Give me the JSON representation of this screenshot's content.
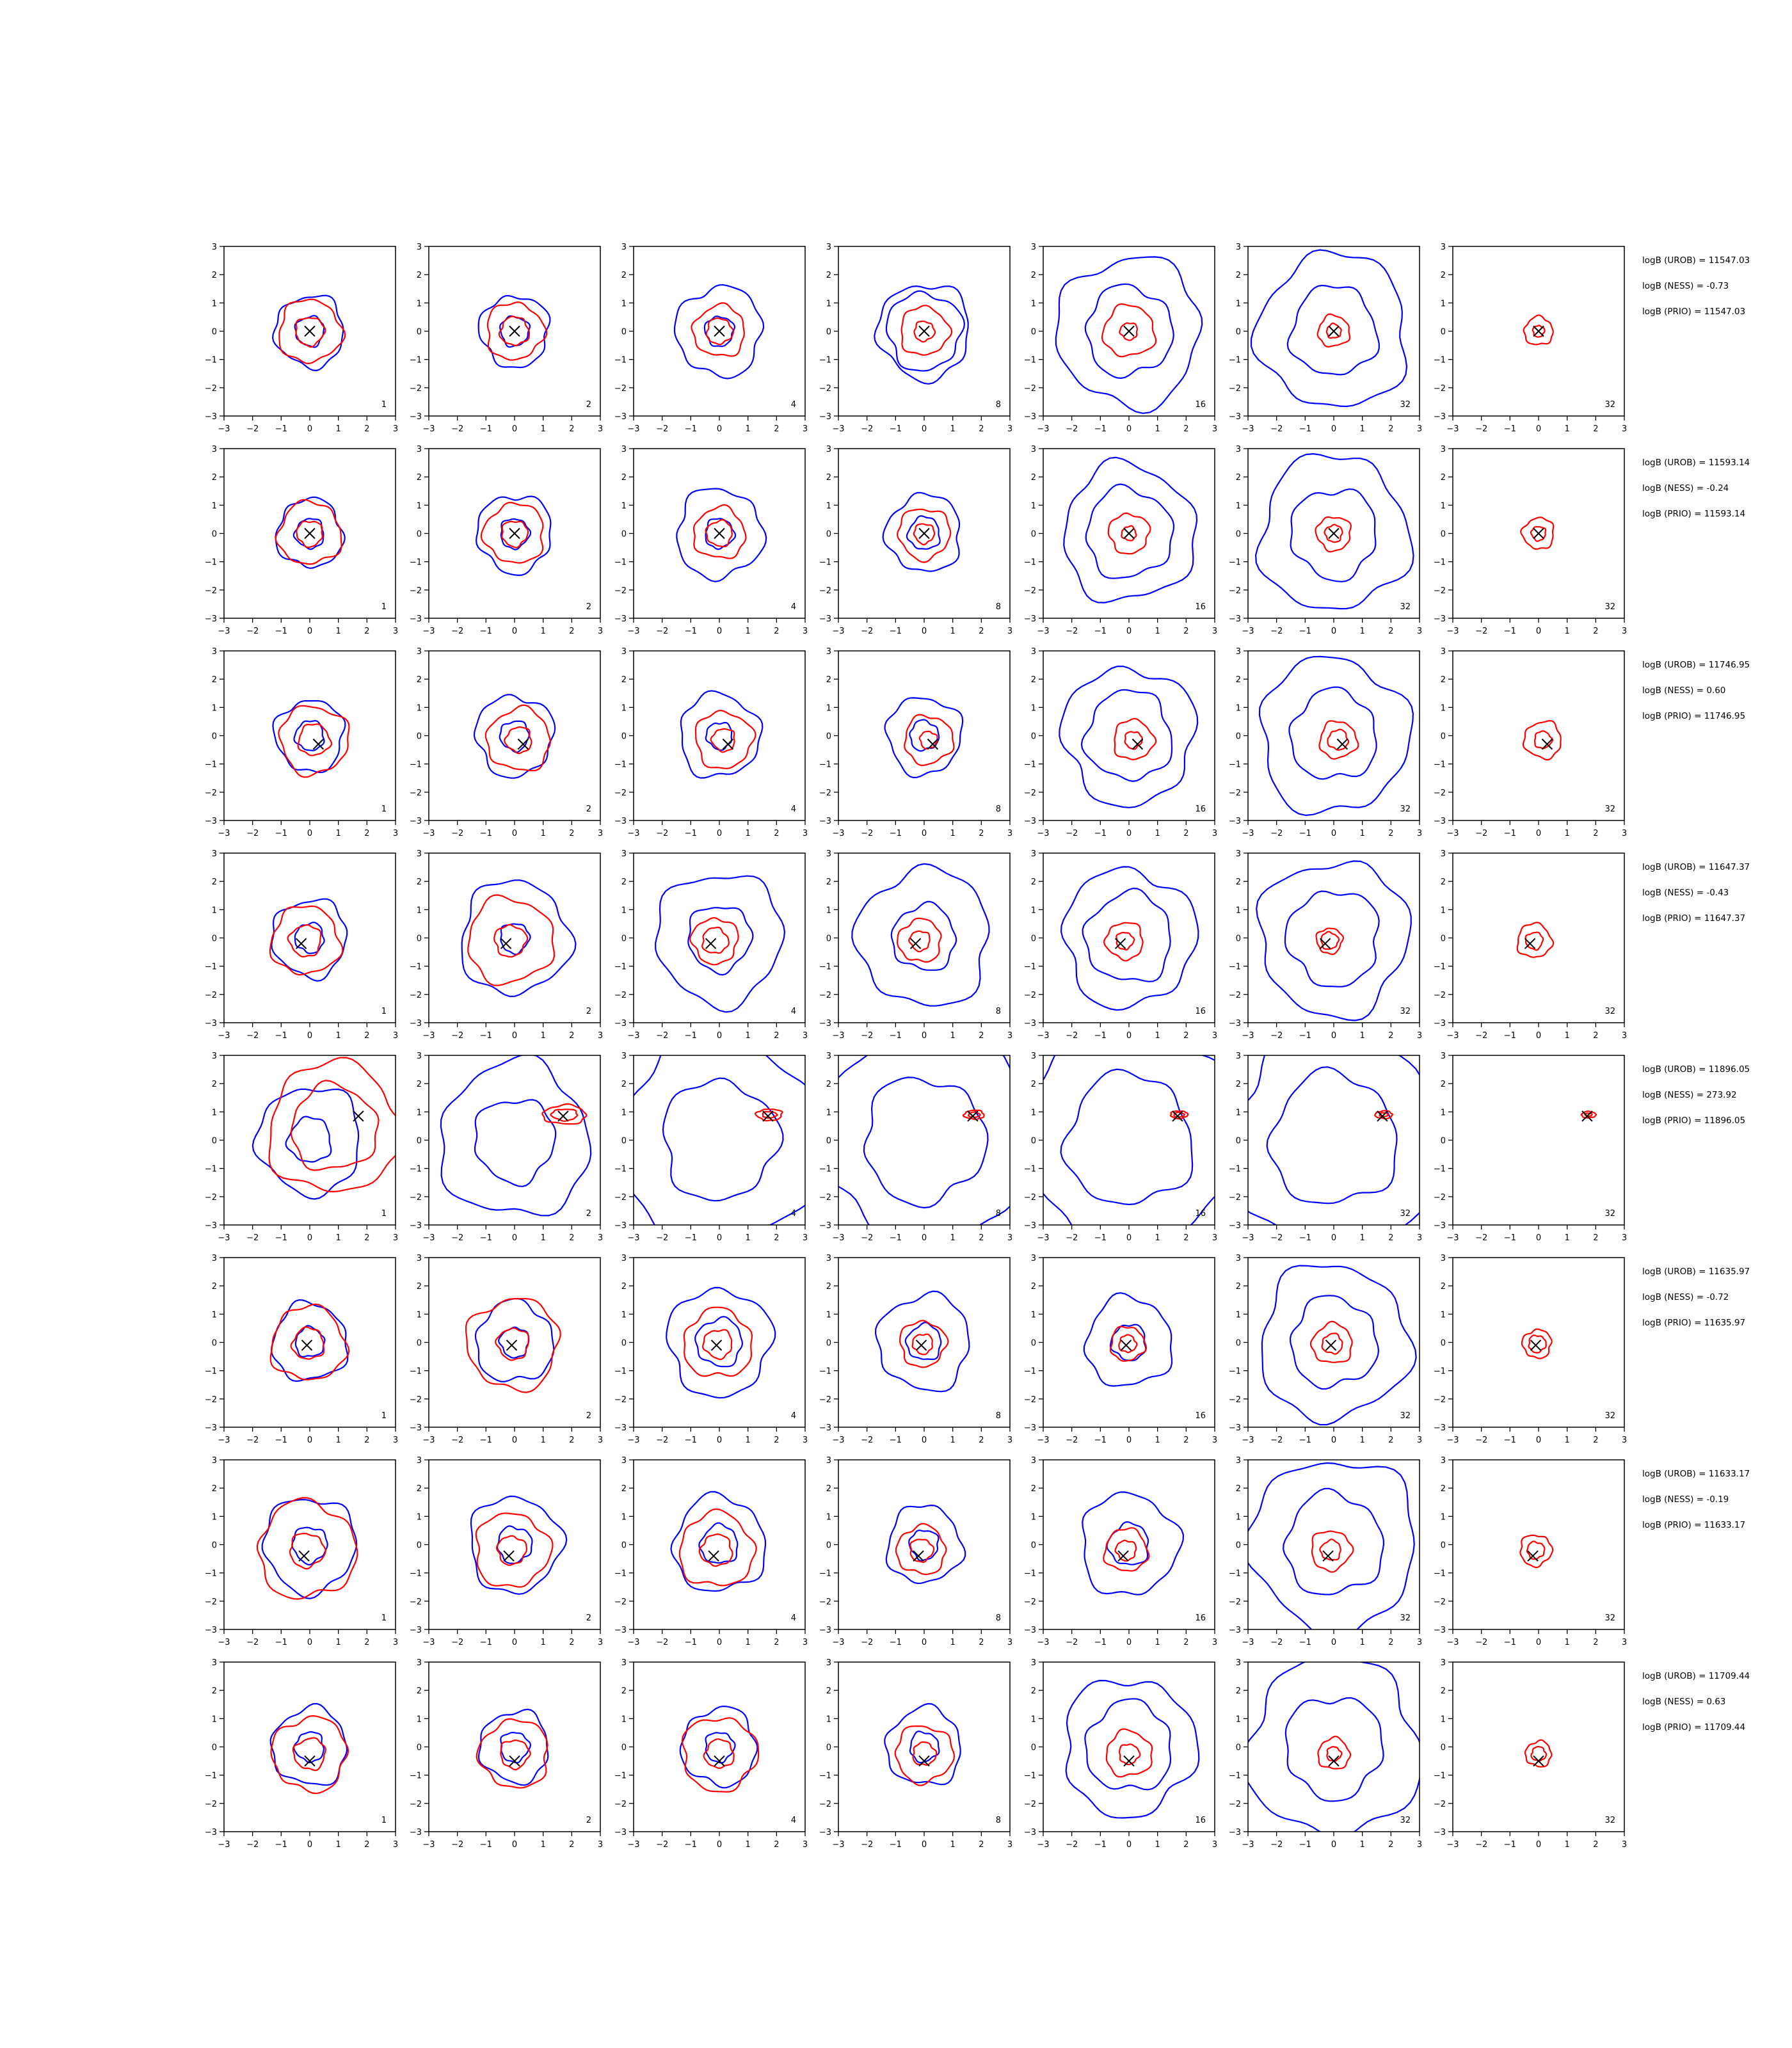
{
  "figure": {
    "colors": {
      "broad": "#0000ff",
      "narrow": "#ff0000",
      "marker": "#000000",
      "axes": "#000000"
    },
    "ticks": [
      "−3",
      "−2",
      "−1",
      "0",
      "1",
      "2",
      "3"
    ],
    "panel_labels": [
      "1",
      "2",
      "4",
      "8",
      "16",
      "32",
      "32"
    ]
  },
  "chart_data": {
    "type": "contour-grid",
    "rows": 8,
    "columns": 7,
    "xlim": [
      -3,
      3
    ],
    "ylim": [
      -3,
      3
    ],
    "grid": false,
    "annotation_placement": "right",
    "series": [
      {
        "name": "blue",
        "color": "#0000ff"
      },
      {
        "name": "red",
        "color": "#ff0000"
      }
    ],
    "panels": [
      {
        "marker": [
          0.0,
          0.0
        ],
        "annotations": [
          "logB (UROB) = 11547.03",
          "logB (NESS) = -0.73",
          "logB (PRIO) = 11547.03"
        ],
        "blue_radii": [
          [
            1.2,
            0.5
          ],
          [
            1.2,
            0.5
          ],
          [
            1.5,
            0.5
          ],
          [
            1.6,
            1.3
          ],
          [
            2.5,
            1.5
          ],
          [
            2.6,
            1.5
          ],
          null
        ],
        "red_radii": [
          [
            1.1,
            0.5
          ],
          [
            1.0,
            0.5
          ],
          [
            0.9,
            0.45
          ],
          [
            0.85,
            0.35
          ],
          [
            0.9,
            0.3
          ],
          [
            0.55,
            0.25
          ],
          [
            0.5,
            0.2
          ]
        ]
      },
      {
        "marker": [
          0.0,
          0.0
        ],
        "annotations": [
          "logB (UROB) = 11593.14",
          "logB (NESS) = -0.24",
          "logB (PRIO) = 11593.14"
        ],
        "blue_radii": [
          [
            1.15,
            0.5
          ],
          [
            1.3,
            0.5
          ],
          [
            1.5,
            0.5
          ],
          [
            1.3,
            0.55
          ],
          [
            2.3,
            1.5
          ],
          [
            2.6,
            1.5
          ],
          null
        ],
        "red_radii": [
          [
            1.1,
            0.45
          ],
          [
            1.05,
            0.45
          ],
          [
            0.9,
            0.45
          ],
          [
            0.9,
            0.35
          ],
          [
            0.7,
            0.25
          ],
          [
            0.6,
            0.3
          ],
          [
            0.55,
            0.25
          ]
        ]
      },
      {
        "marker": [
          0.3,
          -0.3
        ],
        "annotations": [
          "logB (UROB) = 11746.95",
          "logB (NESS) = 0.60",
          "logB (PRIO) = 11746.95"
        ],
        "blue_radii": [
          [
            1.2,
            0.5
          ],
          [
            1.35,
            0.5
          ],
          [
            1.4,
            0.45
          ],
          [
            1.3,
            0.5
          ],
          [
            2.3,
            1.5
          ],
          [
            2.6,
            1.5
          ],
          null
        ],
        "red_radii": [
          [
            1.2,
            0.55
          ],
          [
            1.1,
            0.45
          ],
          [
            1.0,
            0.4
          ],
          [
            0.85,
            0.3
          ],
          [
            0.7,
            0.3
          ],
          [
            0.65,
            0.35
          ],
          [
            0.65,
            0.3
          ]
        ]
      },
      {
        "marker": [
          -0.3,
          -0.2
        ],
        "annotations": [
          "logB (UROB) = 11647.37",
          "logB (NESS) = -0.43",
          "logB (PRIO) = 11647.37"
        ],
        "blue_radii": [
          [
            1.3,
            0.5
          ],
          [
            1.9,
            0.5
          ],
          [
            2.2,
            1.1
          ],
          [
            2.3,
            1.1
          ],
          [
            2.3,
            1.5
          ],
          [
            2.6,
            1.6
          ],
          null
        ],
        "red_radii": [
          [
            1.2,
            0.55
          ],
          [
            1.5,
            0.55
          ],
          [
            0.8,
            0.45
          ],
          [
            0.75,
            0.35
          ],
          [
            0.65,
            0.3
          ],
          [
            0.45,
            0.3
          ],
          [
            0.6,
            0.3
          ]
        ]
      },
      {
        "marker": [
          1.7,
          0.85
        ],
        "annotations": [
          "logB (UROB) = 11896.05",
          "logB (NESS) = 273.92",
          "logB (PRIO) = 11896.05"
        ],
        "blue_radii": [
          [
            1.8,
            0.75
          ],
          [
            2.6,
            1.4
          ],
          [
            3.5,
            2.0
          ],
          [
            3.6,
            2.1
          ],
          [
            3.7,
            2.2
          ],
          [
            3.7,
            2.2
          ],
          null
        ],
        "red_radii": [
          [
            2.3,
            1.5
          ],
          [
            0.75,
            0.45
          ],
          [
            0.45,
            0.25
          ],
          [
            0.35,
            0.2
          ],
          [
            0.3,
            0.18
          ],
          [
            0.3,
            0.15
          ],
          [
            0.25,
            0.12
          ]
        ]
      },
      {
        "marker": [
          -0.1,
          -0.1
        ],
        "annotations": [
          "logB (UROB) = 11635.97",
          "logB (NESS) = -0.72",
          "logB (PRIO) = 11635.97"
        ],
        "blue_radii": [
          [
            1.3,
            0.5
          ],
          [
            1.35,
            0.5
          ],
          [
            1.8,
            0.8
          ],
          [
            1.6,
            0.6
          ],
          [
            1.5,
            0.6
          ],
          [
            2.6,
            1.5
          ],
          null
        ],
        "red_radii": [
          [
            1.3,
            0.55
          ],
          [
            1.6,
            0.55
          ],
          [
            1.2,
            0.5
          ],
          [
            0.8,
            0.35
          ],
          [
            0.6,
            0.3
          ],
          [
            0.7,
            0.35
          ],
          [
            0.5,
            0.3
          ]
        ]
      },
      {
        "marker": [
          -0.2,
          -0.4
        ],
        "annotations": [
          "logB (UROB) = 11633.17",
          "logB (NESS) = -0.19",
          "logB (PRIO) = 11633.17"
        ],
        "blue_radii": [
          [
            1.6,
            0.6
          ],
          [
            1.6,
            0.6
          ],
          [
            1.6,
            0.65
          ],
          [
            1.3,
            0.5
          ],
          [
            1.7,
            0.7
          ],
          [
            2.9,
            1.7
          ],
          null
        ],
        "red_radii": [
          [
            1.7,
            0.6
          ],
          [
            1.3,
            0.5
          ],
          [
            1.3,
            0.55
          ],
          [
            0.85,
            0.4
          ],
          [
            0.75,
            0.35
          ],
          [
            0.7,
            0.35
          ],
          [
            0.55,
            0.3
          ]
        ]
      },
      {
        "marker": [
          0.0,
          -0.5
        ],
        "annotations": [
          "logB (UROB) = 11709.44",
          "logB (NESS) = 0.63",
          "logB (PRIO) = 11709.44"
        ],
        "blue_radii": [
          [
            1.3,
            0.5
          ],
          [
            1.2,
            0.5
          ],
          [
            1.3,
            0.5
          ],
          [
            1.3,
            0.5
          ],
          [
            2.3,
            1.5
          ],
          [
            3.0,
            1.7
          ],
          null
        ],
        "red_radii": [
          [
            1.3,
            0.55
          ],
          [
            1.2,
            0.5
          ],
          [
            1.3,
            0.5
          ],
          [
            1.0,
            0.4
          ],
          [
            0.8,
            0.35
          ],
          [
            0.55,
            0.25
          ],
          [
            0.45,
            0.25
          ]
        ]
      }
    ]
  }
}
